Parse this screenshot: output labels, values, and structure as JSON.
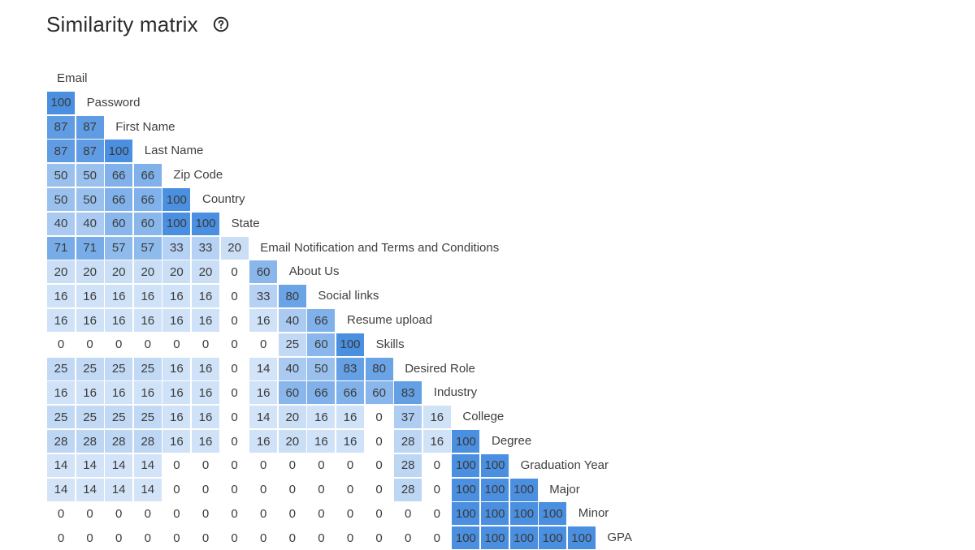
{
  "header": {
    "title": "Similarity matrix",
    "help_icon": "help-circle-icon"
  },
  "chart_data": {
    "type": "heatmap",
    "shape": "lower-triangular",
    "colors": {
      "low": "#eaf2fc",
      "high": "#4a8fe0"
    },
    "labels": [
      "Email",
      "Password",
      "First Name",
      "Last Name",
      "Zip Code",
      "Country",
      "State",
      "Email Notification and Terms and Conditions",
      "About Us",
      "Social links",
      "Resume upload",
      "Skills",
      "Desired Role",
      "Industry",
      "College",
      "Degree",
      "Graduation Year",
      "Major",
      "Minor",
      "GPA"
    ],
    "rows": [
      [],
      [
        100
      ],
      [
        87,
        87
      ],
      [
        87,
        87,
        100
      ],
      [
        50,
        50,
        66,
        66
      ],
      [
        50,
        50,
        66,
        66,
        100
      ],
      [
        40,
        40,
        60,
        60,
        100,
        100
      ],
      [
        71,
        71,
        57,
        57,
        33,
        33,
        20
      ],
      [
        20,
        20,
        20,
        20,
        20,
        20,
        0,
        60
      ],
      [
        16,
        16,
        16,
        16,
        16,
        16,
        0,
        33,
        80
      ],
      [
        16,
        16,
        16,
        16,
        16,
        16,
        0,
        16,
        40,
        66
      ],
      [
        0,
        0,
        0,
        0,
        0,
        0,
        0,
        0,
        25,
        60,
        100
      ],
      [
        25,
        25,
        25,
        25,
        16,
        16,
        0,
        14,
        40,
        50,
        83,
        80
      ],
      [
        16,
        16,
        16,
        16,
        16,
        16,
        0,
        16,
        60,
        66,
        66,
        60,
        83
      ],
      [
        25,
        25,
        25,
        25,
        16,
        16,
        0,
        14,
        20,
        16,
        16,
        0,
        37,
        16
      ],
      [
        28,
        28,
        28,
        28,
        16,
        16,
        0,
        16,
        20,
        16,
        16,
        0,
        28,
        16,
        100
      ],
      [
        14,
        14,
        14,
        14,
        0,
        0,
        0,
        0,
        0,
        0,
        0,
        0,
        28,
        0,
        100,
        100
      ],
      [
        14,
        14,
        14,
        14,
        0,
        0,
        0,
        0,
        0,
        0,
        0,
        0,
        28,
        0,
        100,
        100,
        100
      ],
      [
        0,
        0,
        0,
        0,
        0,
        0,
        0,
        0,
        0,
        0,
        0,
        0,
        0,
        0,
        100,
        100,
        100,
        100
      ],
      [
        0,
        0,
        0,
        0,
        0,
        0,
        0,
        0,
        0,
        0,
        0,
        0,
        0,
        0,
        100,
        100,
        100,
        100,
        100
      ]
    ]
  }
}
